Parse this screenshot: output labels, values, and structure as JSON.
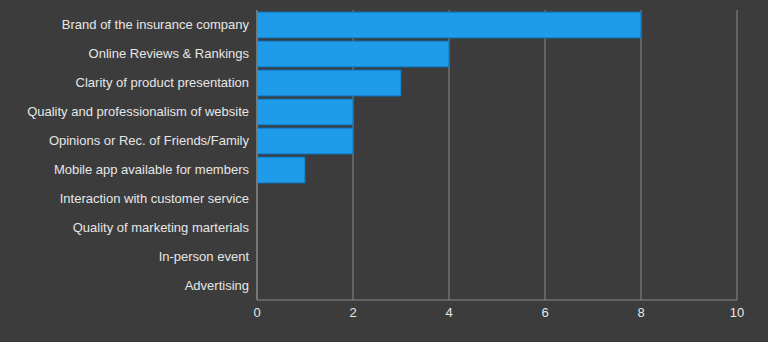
{
  "chart_data": {
    "type": "bar",
    "orientation": "horizontal",
    "categories": [
      "Brand of the insurance company",
      "Online Reviews & Rankings",
      "Clarity of product presentation",
      "Quality and professionalism of website",
      "Opinions or Rec. of Friends/Family",
      "Mobile app available for members",
      "Interaction with customer service",
      "Quality of marketing marterials",
      "In-person event",
      "Advertising"
    ],
    "values": [
      8,
      4,
      3,
      2,
      2,
      1,
      0,
      0,
      0,
      0
    ],
    "color": "#1e9be9",
    "xlim": [
      0,
      10
    ],
    "xticks": [
      0,
      2,
      4,
      6,
      8,
      10
    ],
    "grid": true
  }
}
